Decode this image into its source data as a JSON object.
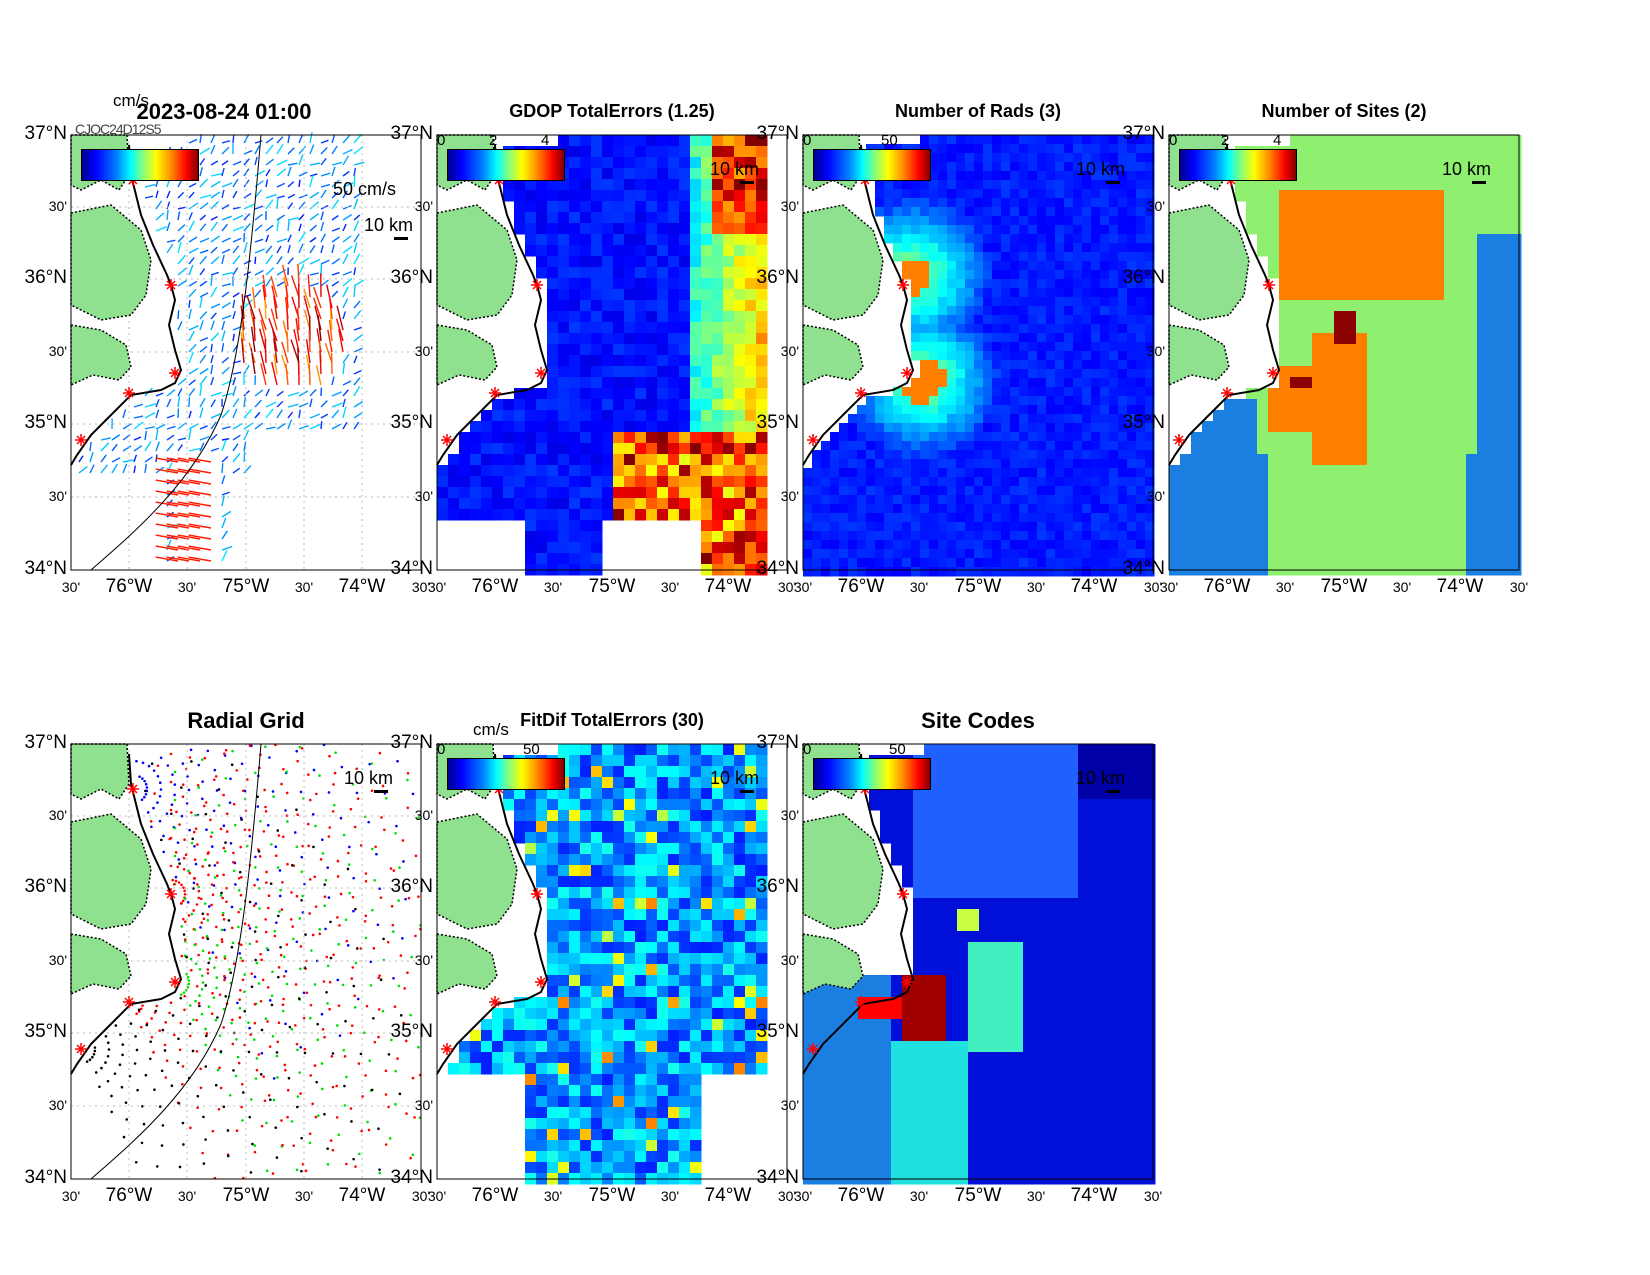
{
  "axes": {
    "lat_ticks": [
      "37°N",
      "30'",
      "36°N",
      "30'",
      "35°N",
      "30'",
      "34°N"
    ],
    "lon_ticks": [
      "30'",
      "76°W",
      "30'",
      "75°W",
      "30'",
      "74°W",
      "30'"
    ]
  },
  "colors": {
    "land": "#8fe08f",
    "coast": "#000000",
    "radar_site": "#ff0000"
  },
  "panels": [
    {
      "id": "velocity",
      "title": "2023-08-24 01:00",
      "unit": "cm/s",
      "overlap_text": "CJOC24D12S5",
      "vector_scale": "50 cm/s",
      "scale": "10 km",
      "isobath": "100"
    },
    {
      "id": "gdop",
      "title": "GDOP TotalErrors (1.25)",
      "cbar_ticks": [
        "0",
        "2",
        "4"
      ],
      "scale": "10 km",
      "contour": "1.25"
    },
    {
      "id": "rads",
      "title": "Number of Rads (3)",
      "cbar_ticks": [
        "0",
        "50"
      ],
      "scale": "10 km",
      "contour": "3"
    },
    {
      "id": "sites",
      "title": "Number of Sites (2)",
      "cbar_ticks": [
        "0",
        "2",
        "4"
      ],
      "scale": "10 km",
      "contour": "2"
    },
    {
      "id": "radgrid",
      "title": "Radial Grid",
      "scale": "10 km",
      "isobath": "100"
    },
    {
      "id": "fitdif",
      "title": "FitDif TotalErrors (30)",
      "unit": "cm/s",
      "cbar_ticks": [
        "0",
        "50"
      ],
      "scale": "10 km",
      "contour": "30"
    },
    {
      "id": "sitecodes",
      "title": "Site Codes",
      "cbar_ticks": [
        "0",
        "50"
      ],
      "scale": "10 km"
    }
  ]
}
